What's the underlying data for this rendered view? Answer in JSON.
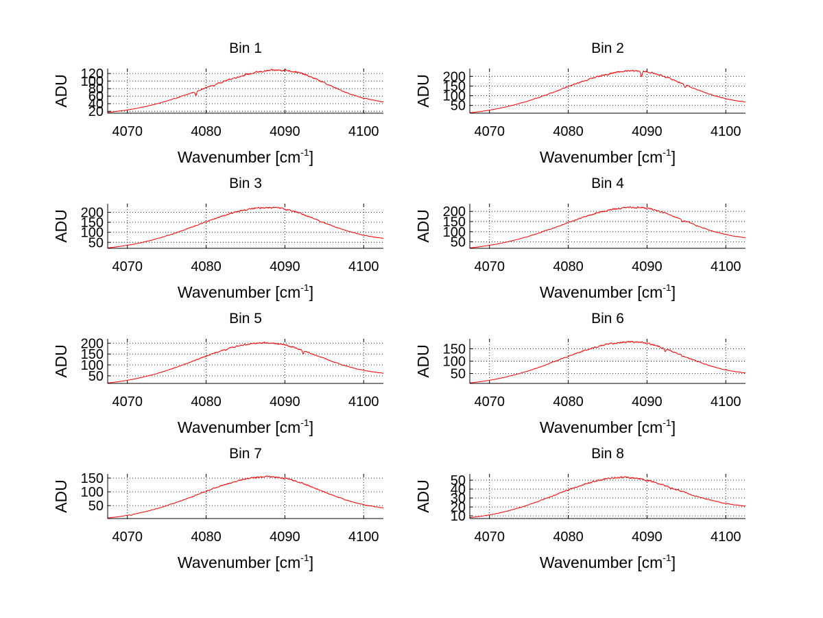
{
  "chart_data": [
    {
      "type": "line",
      "title": "Bin 1",
      "xlabel": "Wavenumber [cm",
      "xlabel_superscript": "-1",
      "xlabel_suffix": "]",
      "ylabel": "ADU",
      "xlim": [
        4067.5,
        4102.5
      ],
      "ylim": [
        15,
        133
      ],
      "xticks": [
        4070,
        4080,
        4090,
        4100
      ],
      "yticks": [
        20,
        40,
        60,
        80,
        100,
        120
      ],
      "grid": true,
      "color": "#ff0000",
      "curve": {
        "peak_x": 4089.5,
        "peak_y": 129,
        "start_y": 17,
        "end_y": 45,
        "noise": 2.0
      },
      "dips": [
        {
          "x": 4078.7,
          "depth": 12
        },
        {
          "x": 4081.0,
          "depth": 4
        }
      ]
    },
    {
      "type": "line",
      "title": "Bin 2",
      "xlabel": "Wavenumber [cm",
      "xlabel_superscript": "-1",
      "xlabel_suffix": "]",
      "ylabel": "ADU",
      "xlim": [
        4067.5,
        4102.5
      ],
      "ylim": [
        10,
        240
      ],
      "xticks": [
        4070,
        4080,
        4090,
        4100
      ],
      "yticks": [
        50,
        100,
        150,
        200
      ],
      "grid": true,
      "color": "#ff0000",
      "curve": {
        "peak_x": 4088.5,
        "peak_y": 228,
        "start_y": 12,
        "end_y": 68,
        "noise": 3.5
      },
      "dips": [
        {
          "x": 4089.3,
          "depth": 30
        },
        {
          "x": 4094.8,
          "depth": 14
        },
        {
          "x": 4085.0,
          "depth": 6
        }
      ]
    },
    {
      "type": "line",
      "title": "Bin 3",
      "xlabel": "Wavenumber [cm",
      "xlabel_superscript": "-1",
      "xlabel_suffix": "]",
      "ylabel": "ADU",
      "xlim": [
        4067.5,
        4102.5
      ],
      "ylim": [
        20,
        243
      ],
      "xticks": [
        4070,
        4080,
        4090,
        4100
      ],
      "yticks": [
        50,
        100,
        150,
        200
      ],
      "grid": true,
      "color": "#ff0000",
      "curve": {
        "peak_x": 4088.0,
        "peak_y": 224,
        "start_y": 22,
        "end_y": 70,
        "noise": 3.5
      },
      "dips": [
        {
          "x": 4094.5,
          "depth": 6
        }
      ]
    },
    {
      "type": "line",
      "title": "Bin 4",
      "xlabel": "Wavenumber [cm",
      "xlabel_superscript": "-1",
      "xlabel_suffix": "]",
      "ylabel": "ADU",
      "xlim": [
        4067.5,
        4102.5
      ],
      "ylim": [
        18,
        238
      ],
      "xticks": [
        4070,
        4080,
        4090,
        4100
      ],
      "yticks": [
        50,
        100,
        150,
        200
      ],
      "grid": true,
      "color": "#ff0000",
      "curve": {
        "peak_x": 4088.5,
        "peak_y": 220,
        "start_y": 20,
        "end_y": 70,
        "noise": 3.5
      },
      "dips": [
        {
          "x": 4094.5,
          "depth": 10
        }
      ]
    },
    {
      "type": "line",
      "title": "Bin 5",
      "xlabel": "Wavenumber [cm",
      "xlabel_superscript": "-1",
      "xlabel_suffix": "]",
      "ylabel": "ADU",
      "xlim": [
        4067.5,
        4102.5
      ],
      "ylim": [
        15,
        220
      ],
      "xticks": [
        4070,
        4080,
        4090,
        4100
      ],
      "yticks": [
        50,
        100,
        150,
        200
      ],
      "grid": true,
      "color": "#ff0000",
      "curve": {
        "peak_x": 4087.5,
        "peak_y": 202,
        "start_y": 17,
        "end_y": 62,
        "noise": 3.0
      },
      "dips": [
        {
          "x": 4092.3,
          "depth": 14
        },
        {
          "x": 4082.5,
          "depth": 6
        }
      ]
    },
    {
      "type": "line",
      "title": "Bin 6",
      "xlabel": "Wavenumber [cm",
      "xlabel_superscript": "-1",
      "xlabel_suffix": "]",
      "ylabel": "ADU",
      "xlim": [
        4067.5,
        4102.5
      ],
      "ylim": [
        10,
        190
      ],
      "xticks": [
        4070,
        4080,
        4090,
        4100
      ],
      "yticks": [
        50,
        100,
        150
      ],
      "grid": true,
      "color": "#ff0000",
      "curve": {
        "peak_x": 4088.0,
        "peak_y": 178,
        "start_y": 12,
        "end_y": 52,
        "noise": 3.0
      },
      "dips": [
        {
          "x": 4092.3,
          "depth": 12
        },
        {
          "x": 4094.5,
          "depth": 6
        }
      ]
    },
    {
      "type": "line",
      "title": "Bin 7",
      "xlabel": "Wavenumber [cm",
      "xlabel_superscript": "-1",
      "xlabel_suffix": "]",
      "ylabel": "ADU",
      "xlim": [
        4067.5,
        4102.5
      ],
      "ylim": [
        3,
        165
      ],
      "xticks": [
        4070,
        4080,
        4090,
        4100
      ],
      "yticks": [
        50,
        100,
        150
      ],
      "grid": true,
      "color": "#ff0000",
      "curve": {
        "peak_x": 4088.0,
        "peak_y": 155,
        "start_y": 5,
        "end_y": 42,
        "noise": 2.5
      },
      "dips": [
        {
          "x": 4070.5,
          "depth": 3
        }
      ]
    },
    {
      "type": "line",
      "title": "Bin 8",
      "xlabel": "Wavenumber [cm",
      "xlabel_superscript": "-1",
      "xlabel_suffix": "]",
      "ylabel": "ADU",
      "xlim": [
        4067.5,
        4102.5
      ],
      "ylim": [
        7,
        57
      ],
      "xticks": [
        4070,
        4080,
        4090,
        4100
      ],
      "yticks": [
        10,
        20,
        30,
        40,
        50
      ],
      "grid": true,
      "color": "#ff0000",
      "curve": {
        "peak_x": 4087.0,
        "peak_y": 53,
        "start_y": 8,
        "end_y": 21,
        "noise": 0.9
      },
      "dips": [
        {
          "x": 4093.0,
          "depth": 2
        }
      ]
    }
  ]
}
